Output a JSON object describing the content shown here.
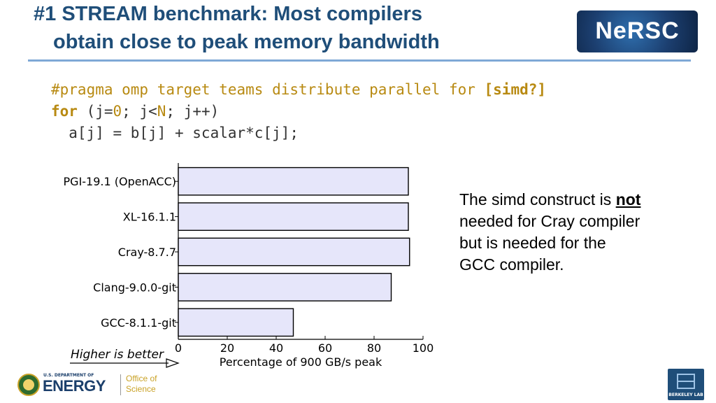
{
  "slide": {
    "title_line1": "#1 STREAM benchmark: Most compilers",
    "title_line2": "obtain close to peak memory bandwidth",
    "logo_text": "NeRSC",
    "note_before": "The simd construct is ",
    "note_emph": "not",
    "note_after": " needed for Cray compiler but is needed for the GCC compiler.",
    "higher_is_better": "Higher is better",
    "doe_dept": "U.S. DEPARTMENT OF",
    "doe_energy": "ENERGY",
    "doe_office_1": "Office of",
    "doe_office_2": "Science",
    "berkeley_lab": "BERKELEY LAB"
  },
  "code": {
    "line1_pragma": "#pragma omp target teams distribute parallel for ",
    "line1_simd": "[simd?]",
    "line2_for": "for",
    "line2_open": " (j=",
    "line2_zero": "0",
    "line2_mid": "; j<",
    "line2_N": "N",
    "line2_end": "; j++)",
    "line3": "  a[j] = b[j] + scalar*c[j];"
  },
  "chart_data": {
    "type": "bar",
    "orientation": "horizontal",
    "categories": [
      "PGI-19.1 (OpenACC)",
      "XL-16.1.1",
      "Cray-8.7.7",
      "Clang-9.0.0-git",
      "GCC-8.1.1-git"
    ],
    "values": [
      94,
      94,
      94.5,
      87,
      47
    ],
    "xlabel": "Percentage of 900 GB/s peak",
    "xlim": [
      0,
      100
    ],
    "xticks": [
      0,
      20,
      40,
      60,
      80,
      100
    ],
    "bar_color": "#e6e6fa",
    "bar_edge": "#000000",
    "grid": false
  }
}
